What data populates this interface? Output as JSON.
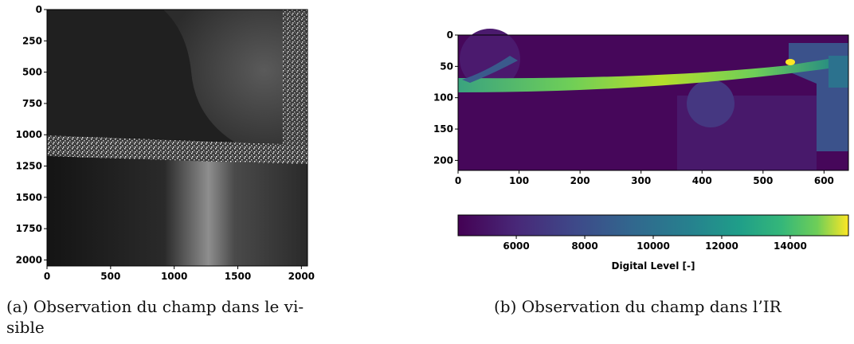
{
  "panel_a": {
    "image_description_icon": "grayscale-speckle-image",
    "y_ticks": [
      "0",
      "250",
      "500",
      "750",
      "1000",
      "1250",
      "1500",
      "1750",
      "2000"
    ],
    "x_ticks": [
      "0",
      "500",
      "1000",
      "1500",
      "2000"
    ],
    "caption_line1": "(a) Observation du champ dans le vi-",
    "caption_line2": "sible"
  },
  "panel_b": {
    "image_description_icon": "infrared-colormap-image",
    "y_ticks": [
      "0",
      "50",
      "100",
      "150",
      "200"
    ],
    "x_ticks": [
      "0",
      "100",
      "200",
      "300",
      "400",
      "500",
      "600"
    ],
    "colorbar_ticks": [
      "6000",
      "8000",
      "10000",
      "12000",
      "14000"
    ],
    "colorbar_label": "Digital Level [-]",
    "caption": "(b) Observation du champ dans l’IR"
  }
}
